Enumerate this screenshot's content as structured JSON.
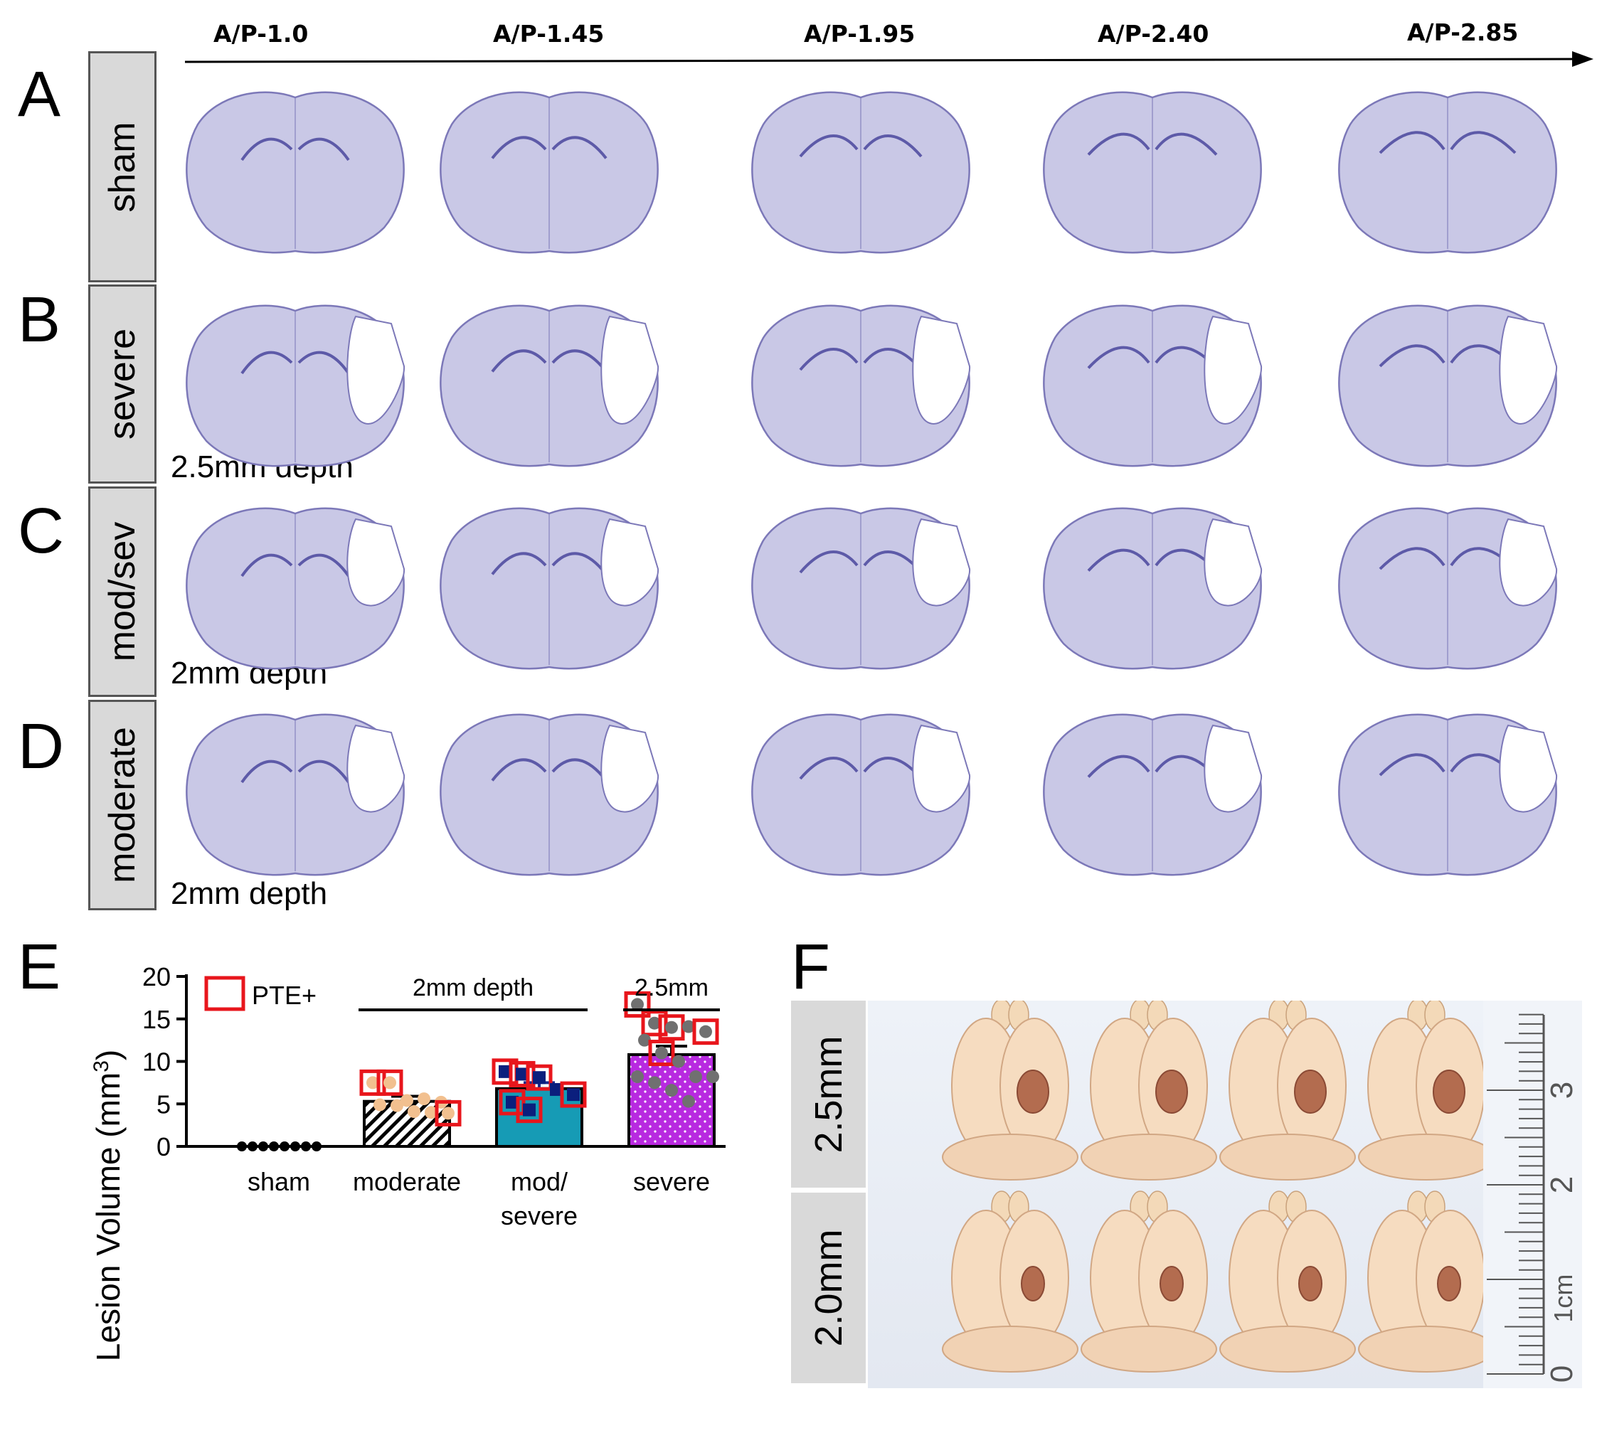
{
  "panels": {
    "a": "A",
    "b": "B",
    "c": "C",
    "d": "D",
    "e": "E",
    "f": "F"
  },
  "ap_axis": [
    "A/P-1.0",
    "A/P-1.45",
    "A/P-1.95",
    "A/P-2.40",
    "A/P-2.85"
  ],
  "groups": [
    {
      "label": "sham",
      "depth": ""
    },
    {
      "label": "severe",
      "depth": "2.5mm depth"
    },
    {
      "label": "mod/sev",
      "depth": "2mm depth"
    },
    {
      "label": "moderate",
      "depth": "2mm depth"
    }
  ],
  "colors": {
    "stain_fill": "#c9c8e6",
    "stain_edge": "#7c78b8",
    "moderate_fill": "#ffffff",
    "moderate_points": "#f2c08f",
    "modsev_fill": "#169bb5",
    "modsev_points": "#0b1f7d",
    "severe_fill": "#b82ae0",
    "severe_points": "#707070",
    "pte_box": "#e8161c",
    "sham_points": "#000000"
  },
  "chart_data": {
    "type": "bar",
    "title": "",
    "ylabel": "Lesion Volume (mm",
    "ylabel_sup": "3",
    "ylabel_close": ")",
    "ylim": [
      0,
      20
    ],
    "yticks": [
      0,
      5,
      10,
      15,
      20
    ],
    "legend": "PTE+",
    "categories": [
      {
        "label": "sham",
        "label2": ""
      },
      {
        "label": "moderate",
        "label2": ""
      },
      {
        "label": "mod/",
        "label2": "severe"
      },
      {
        "label": "severe",
        "label2": ""
      }
    ],
    "values": [
      0,
      5.3,
      6.8,
      10.8
    ],
    "errors": [
      0,
      0.6,
      0.7,
      1.0
    ],
    "brackets": [
      {
        "label": "2mm depth",
        "from": 1,
        "to": 2
      },
      {
        "label": "2.5mm",
        "from": 3,
        "to": 3
      }
    ],
    "points": [
      [
        0,
        0,
        0,
        0,
        0,
        0,
        0,
        0
      ],
      [
        7.5,
        7.5,
        5.4,
        5.6,
        5.2,
        4.9,
        4.8,
        4.1,
        4.0,
        3.9
      ],
      [
        8.8,
        8.5,
        8.1,
        6.7,
        6.1,
        5.2,
        4.3
      ],
      [
        16.7,
        14.5,
        14.0,
        14.1,
        13.5,
        12.5,
        11.0,
        10.0,
        8.2,
        8.2,
        8.2,
        7.5,
        6.6,
        5.3
      ]
    ],
    "pte_points": [
      [],
      [
        7.5,
        3.9
      ],
      [
        8.8,
        8.5,
        8.1,
        6.1,
        5.2,
        4.3
      ],
      [
        16.7,
        14.5,
        14.0,
        13.5,
        11.0
      ]
    ]
  },
  "photo": {
    "rows": [
      "2.5mm",
      "2.0mm"
    ],
    "ruler_labels": [
      "3",
      "2",
      "1cm",
      "0"
    ]
  }
}
